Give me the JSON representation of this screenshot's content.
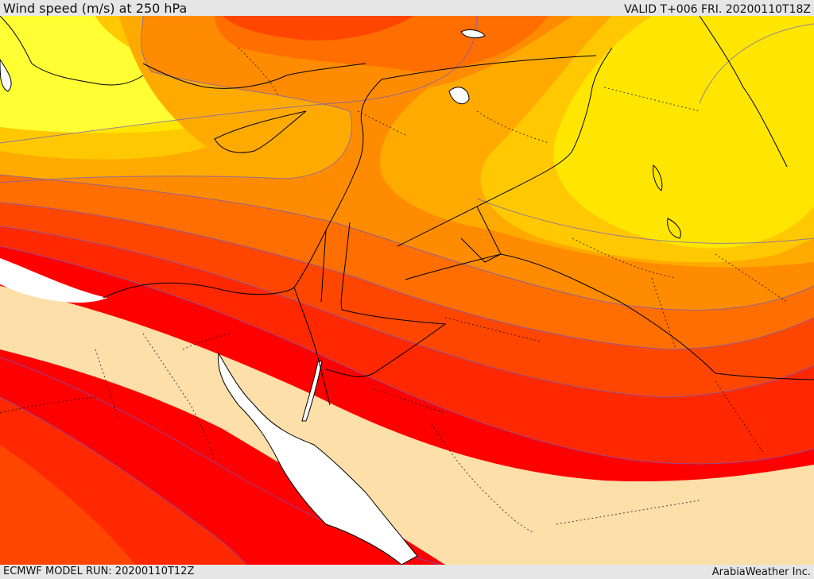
{
  "header": {
    "title": "Wind speed (m/s) at 250 hPa",
    "valid": "VALID T+006 FRI. 20200110T18Z"
  },
  "footer": {
    "model_run": "ECMWF MODEL RUN: 20200110T12Z",
    "credit": "ArabiaWeather Inc."
  },
  "colors": {
    "sea": "#ffffff",
    "land_below_threshold": "#fddfa9",
    "band_light_yellow": "#ffff33",
    "band_yellow": "#ffe600",
    "band_gold": "#ffc800",
    "band_amber": "#ffaa00",
    "band_orange": "#ff8c00",
    "band_dark_orange": "#ff6e00",
    "band_orange_red": "#ff4600",
    "band_red_orange": "#ff2800",
    "band_red": "#ff0000",
    "contour_line": "#6a5acd",
    "coastline": "#000000",
    "border_line": "#000000"
  }
}
